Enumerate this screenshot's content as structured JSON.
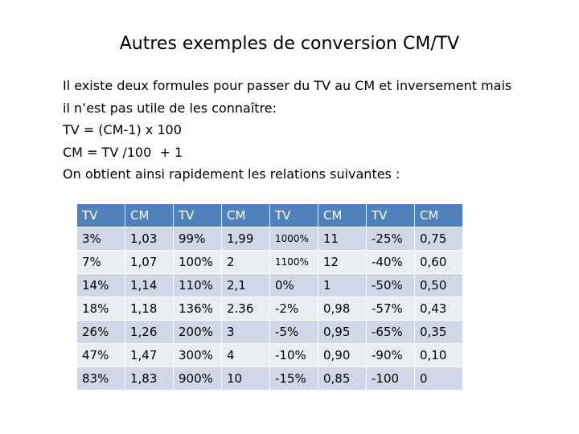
{
  "title": "Autres exemples de conversion CM/TV",
  "body": [
    "Il existe deux formules pour passer du TV au CM et inversement mais",
    "il n’est pas utile de les connaître:",
    "TV = (CM-1) x 100",
    "CM = TV /100  + 1",
    "On obtient ainsi rapidement les relations suivantes :"
  ],
  "table": {
    "header": [
      "TV",
      "CM",
      "TV",
      "CM",
      "TV",
      "CM",
      "TV",
      "CM"
    ],
    "rows": [
      [
        "3%",
        "1,03",
        "99%",
        "1,99",
        "1000%",
        "11",
        "-25%",
        "0,75"
      ],
      [
        "7%",
        "1,07",
        "100%",
        "2",
        "1100%",
        "12",
        "-40%",
        "0,60"
      ],
      [
        "14%",
        "1,14",
        "110%",
        "2,1",
        "0%",
        "1",
        "-50%",
        "0,50"
      ],
      [
        "18%",
        "1,18",
        "136%",
        "2.36",
        "-2%",
        "0,98",
        "-57%",
        "0,43"
      ],
      [
        "26%",
        "1,26",
        "200%",
        "3",
        "-5%",
        "0,95",
        "-65%",
        "0,35"
      ],
      [
        "47%",
        "1,47",
        "300%",
        "4",
        "-10%",
        "0,90",
        "-90%",
        "0,10"
      ],
      [
        "83%",
        "1,83",
        "900%",
        "10",
        "-15%",
        "0,85",
        "-100",
        "0"
      ]
    ]
  }
}
